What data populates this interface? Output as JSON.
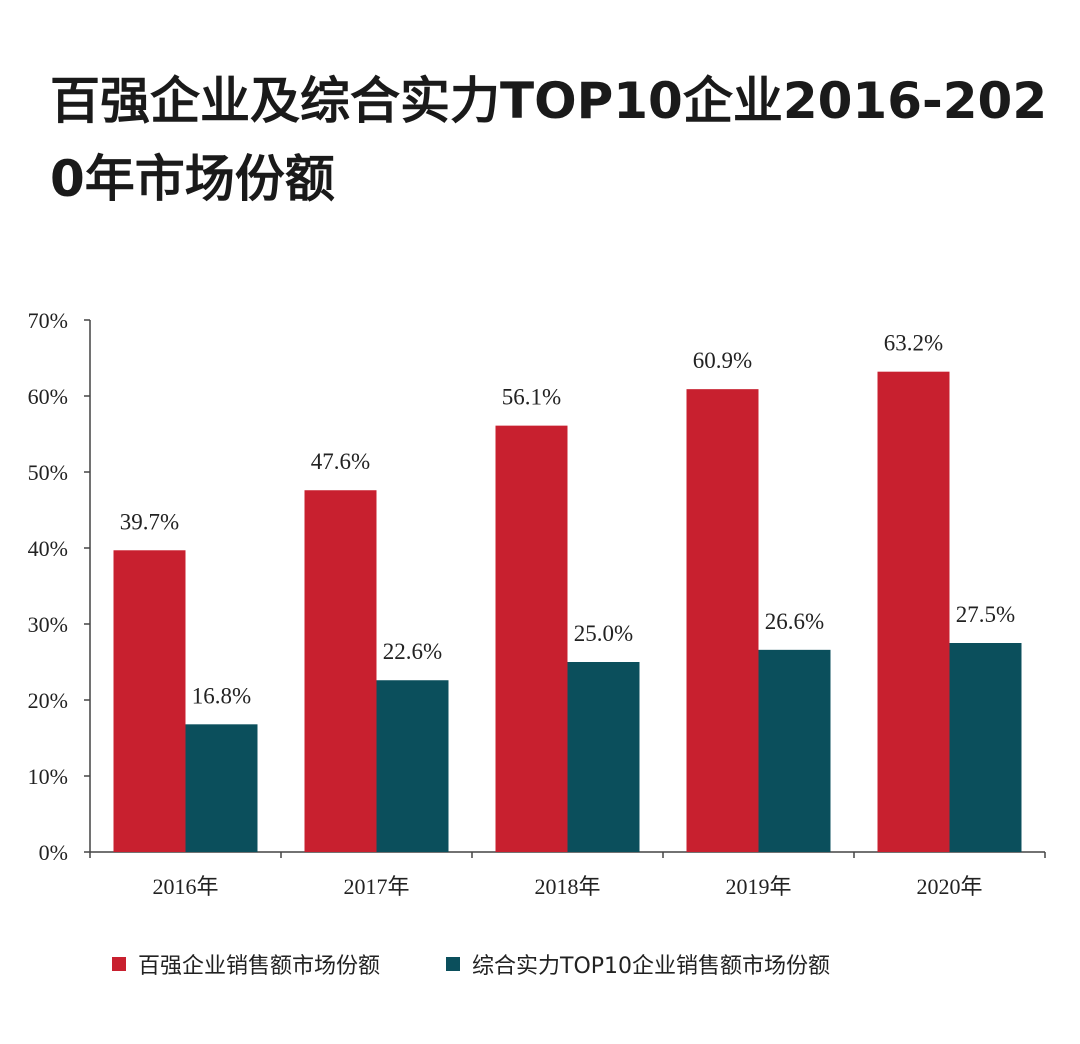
{
  "chart_data": {
    "type": "bar",
    "title": "百强企业及综合实力TOP10企业2016-2020年市场份额",
    "categories": [
      "2016年",
      "2017年",
      "2018年",
      "2019年",
      "2020年"
    ],
    "series": [
      {
        "name": "百强企业销售额市场份额",
        "color": "#c8202f",
        "values": [
          39.7,
          47.6,
          56.1,
          60.9,
          63.2
        ],
        "labels": [
          "39.7%",
          "47.6%",
          "56.1%",
          "60.9%",
          "63.2%"
        ]
      },
      {
        "name": "综合实力TOP10企业销售额市场份额",
        "color": "#0b4f5c",
        "values": [
          16.8,
          22.6,
          25.0,
          26.6,
          27.5
        ],
        "labels": [
          "16.8%",
          "22.6%",
          "25.0%",
          "26.6%",
          "27.5%"
        ]
      }
    ],
    "ylim": [
      0,
      70
    ],
    "yticks": [
      "0%",
      "10%",
      "20%",
      "30%",
      "40%",
      "50%",
      "60%",
      "70%"
    ],
    "grid": false,
    "legend_position": "bottom"
  }
}
